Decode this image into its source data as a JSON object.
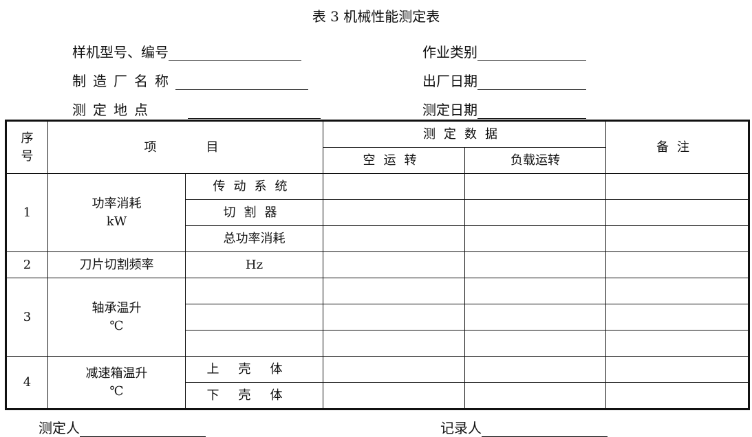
{
  "title": "表 3   机械性能测定表",
  "fields": {
    "model_label": "样机型号、编号",
    "manufacturer_label": "制造厂名称",
    "location_label": "测定地点",
    "work_type_label": "作业类别",
    "factory_date_label": "出厂日期",
    "test_date_label": "测定日期"
  },
  "table": {
    "headers": {
      "seq": "序号",
      "item": "项　　目",
      "data": "测定数据",
      "idle": "空运转",
      "load": "负载运转",
      "remark": "备注"
    },
    "rows": [
      {
        "no": "1",
        "item": "功率消耗",
        "unit": "kW",
        "subs": [
          "传动系统",
          "切割器",
          "总功率消耗"
        ]
      },
      {
        "no": "2",
        "item": "刀片切割频率",
        "unit": "Hz"
      },
      {
        "no": "3",
        "item": "轴承温升",
        "unit": "℃",
        "subs": [
          "",
          "",
          ""
        ]
      },
      {
        "no": "4",
        "item": "减速箱温升",
        "unit": "℃",
        "subs": [
          "上壳体",
          "下壳体"
        ]
      }
    ]
  },
  "footer": {
    "tester_label": "测定人",
    "recorder_label": "记录人"
  }
}
